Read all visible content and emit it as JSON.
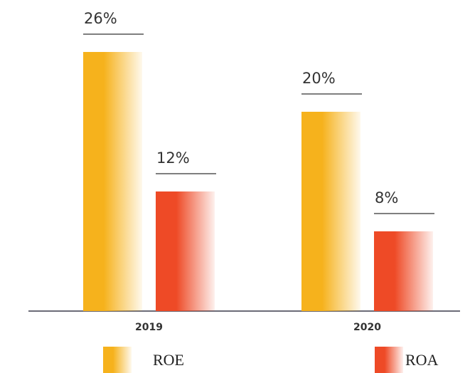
{
  "chart_data": {
    "type": "bar",
    "categories": [
      "2019",
      "2020"
    ],
    "series": [
      {
        "name": "ROE",
        "color": "#f6b21c",
        "values": [
          26,
          20
        ],
        "value_labels": [
          "26%",
          "20%"
        ]
      },
      {
        "name": "ROA",
        "color": "#ee4a26",
        "values": [
          12,
          8
        ],
        "value_labels": [
          "12%",
          "8%"
        ]
      }
    ]
  }
}
